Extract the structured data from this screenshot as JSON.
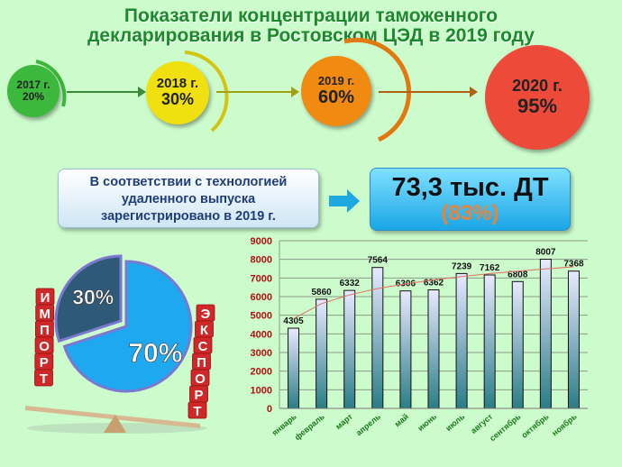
{
  "title": {
    "line1": "Показатели концентрации таможенного",
    "line2": "декларирования в Ростовском ЦЭД в 2019 году"
  },
  "timeline": [
    {
      "year": "2017 г.",
      "value": "20%",
      "color": "#3cb83c"
    },
    {
      "year": "2018 г.",
      "value": "30%",
      "color": "#f0e010"
    },
    {
      "year": "2019 г.",
      "value": "60%",
      "color": "#f08a10"
    },
    {
      "year": "2020 г.",
      "value": "95%",
      "color": "#ee4a3a"
    }
  ],
  "info_box": {
    "line1": "В соответствии с технологией",
    "line2": "удаленного выпуска",
    "line3": "зарегистрировано в 2019 г."
  },
  "result_box": {
    "main": "73,3 тыс. ДТ",
    "percent": "(83%)"
  },
  "scale_graphic": {
    "left_word": "ИМПОРТ",
    "right_word": "ЭКСПОРТ"
  },
  "chart_data": [
    {
      "type": "pie",
      "slices": [
        {
          "label": "30%",
          "value": 30,
          "color": "#2e5a78"
        },
        {
          "label": "70%",
          "value": 70,
          "color": "#1ea8f0"
        }
      ]
    },
    {
      "type": "bar",
      "categories": [
        "январь",
        "февраль",
        "март",
        "апрель",
        "май",
        "июнь",
        "июль",
        "август",
        "сентябрь",
        "октябрь",
        "ноябрь"
      ],
      "values": [
        4305,
        5860,
        6332,
        7564,
        6306,
        6362,
        7239,
        7162,
        6808,
        8007,
        7368
      ],
      "ylim": [
        0,
        9000
      ],
      "yticks": [
        0,
        1000,
        2000,
        3000,
        4000,
        5000,
        6000,
        7000,
        8000,
        9000
      ],
      "grid": true,
      "trendline": "logarithmic",
      "colors": {
        "bar": "#2a7d86",
        "trend": "#e07060",
        "ytick": "#b01010",
        "xtick": "#1a7a1a"
      }
    }
  ]
}
